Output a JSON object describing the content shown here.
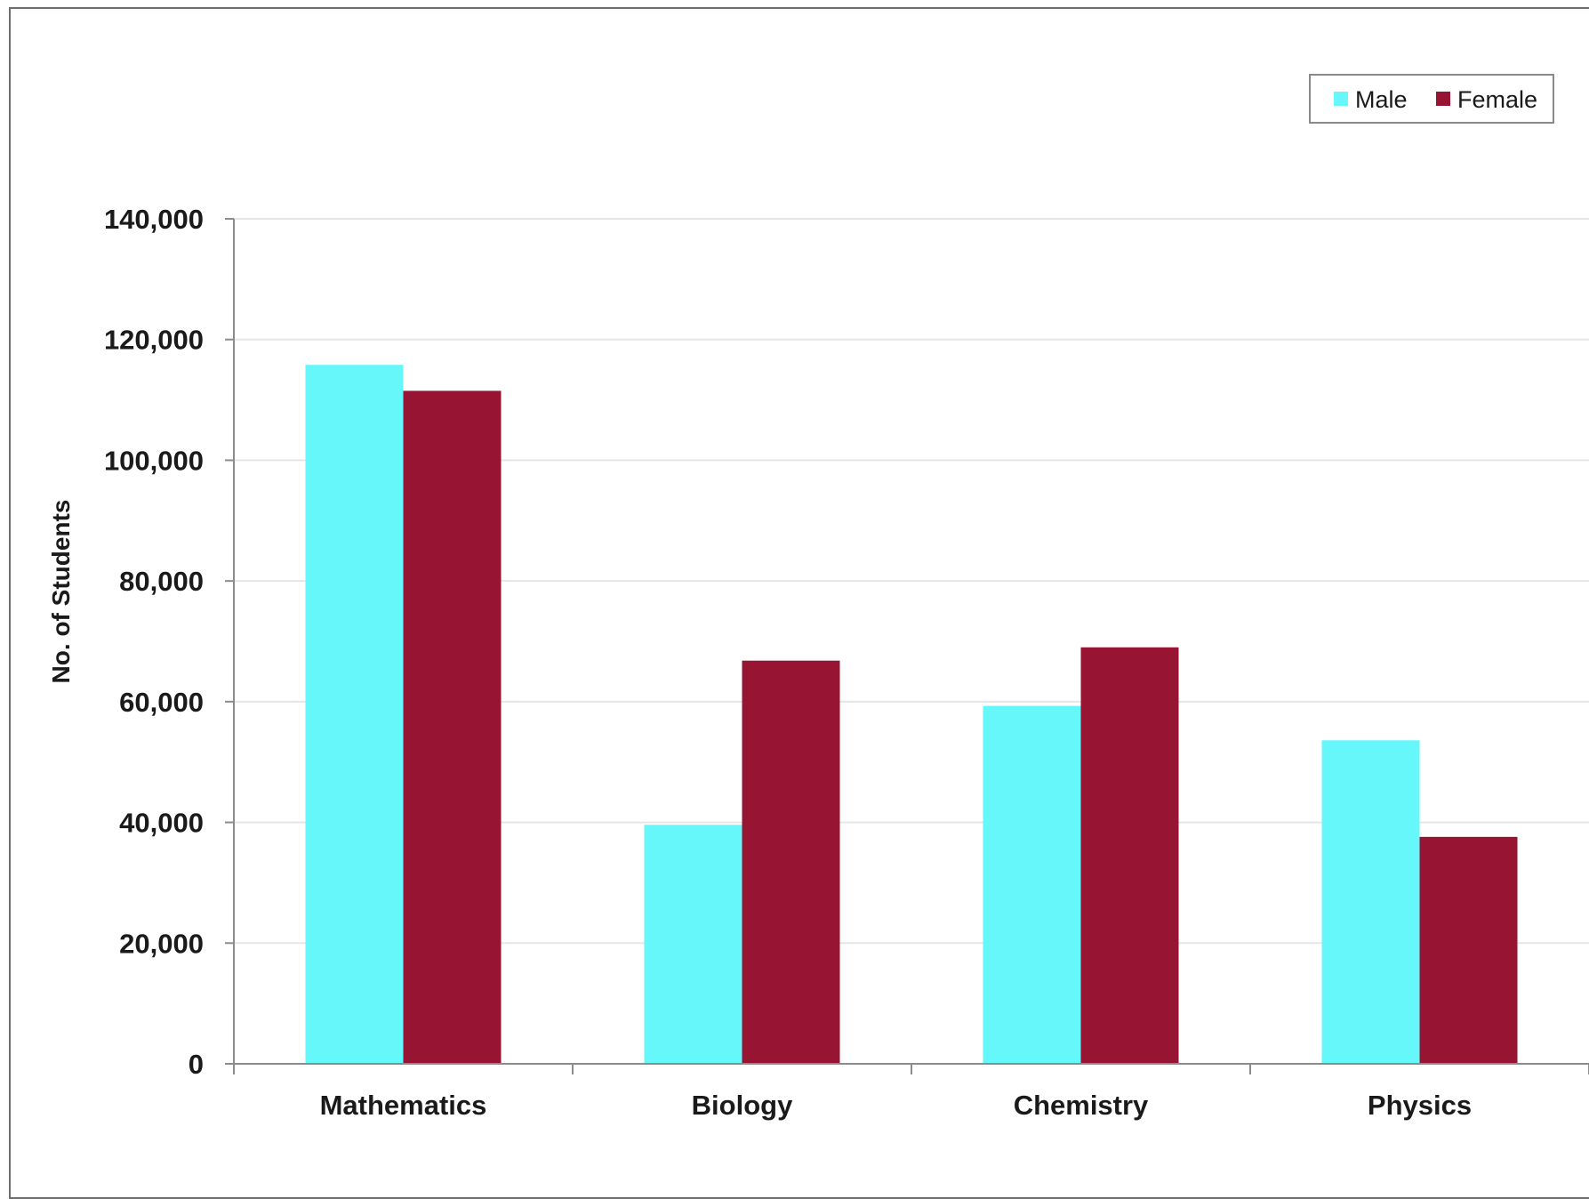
{
  "chart_data": {
    "type": "bar",
    "title": "",
    "xlabel": "",
    "ylabel": "No. of Students",
    "categories": [
      "Mathematics",
      "Biology",
      "Chemistry",
      "Physics"
    ],
    "series": [
      {
        "name": "Male",
        "color": "#66f7fb",
        "values": [
          115800,
          39600,
          59300,
          53600
        ]
      },
      {
        "name": "Female",
        "color": "#971532",
        "values": [
          111500,
          66800,
          69000,
          37600
        ]
      }
    ],
    "ylim": [
      0,
      140000
    ],
    "yticks": [
      "0",
      "20,000",
      "40,000",
      "60,000",
      "80,000",
      "100,000",
      "120,000",
      "140,000"
    ],
    "grid": true,
    "legend_position": "top-right"
  }
}
